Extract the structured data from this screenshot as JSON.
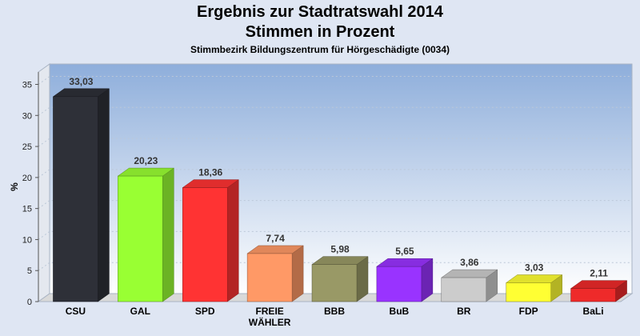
{
  "chart_data": {
    "type": "bar",
    "title": "Ergebnis zur Stadtratswahl 2014",
    "subtitle": "Stimmen in Prozent",
    "caption": "Stimmbezirk Bildungszentrum für Hörgeschädigte (0034)",
    "ylabel": "%",
    "xlabel": "",
    "ylim": [
      0,
      37
    ],
    "yticks": [
      0,
      5,
      10,
      15,
      20,
      25,
      30,
      35
    ],
    "grid": true,
    "legend": "none",
    "categories": [
      "CSU",
      "GAL",
      "SPD",
      "FREIE WÄHLER",
      "BBB",
      "BuB",
      "BR",
      "FDP",
      "BaLi"
    ],
    "category_lines": [
      [
        "CSU"
      ],
      [
        "GAL"
      ],
      [
        "SPD"
      ],
      [
        "FREIE",
        "WÄHLER"
      ],
      [
        "BBB"
      ],
      [
        "BuB"
      ],
      [
        "BR"
      ],
      [
        "FDP"
      ],
      [
        "BaLi"
      ]
    ],
    "values": [
      33.03,
      20.23,
      18.36,
      7.74,
      5.98,
      5.65,
      3.86,
      3.03,
      2.11
    ],
    "value_labels": [
      "33,03",
      "20,23",
      "18,36",
      "7,74",
      "5,98",
      "5,65",
      "3,86",
      "3,03",
      "2,11"
    ],
    "colors": [
      "#2e3038",
      "#99ff33",
      "#ff3333",
      "#ff9966",
      "#999966",
      "#9933ff",
      "#cccccc",
      "#ffff33",
      "#ee2a2a"
    ]
  }
}
